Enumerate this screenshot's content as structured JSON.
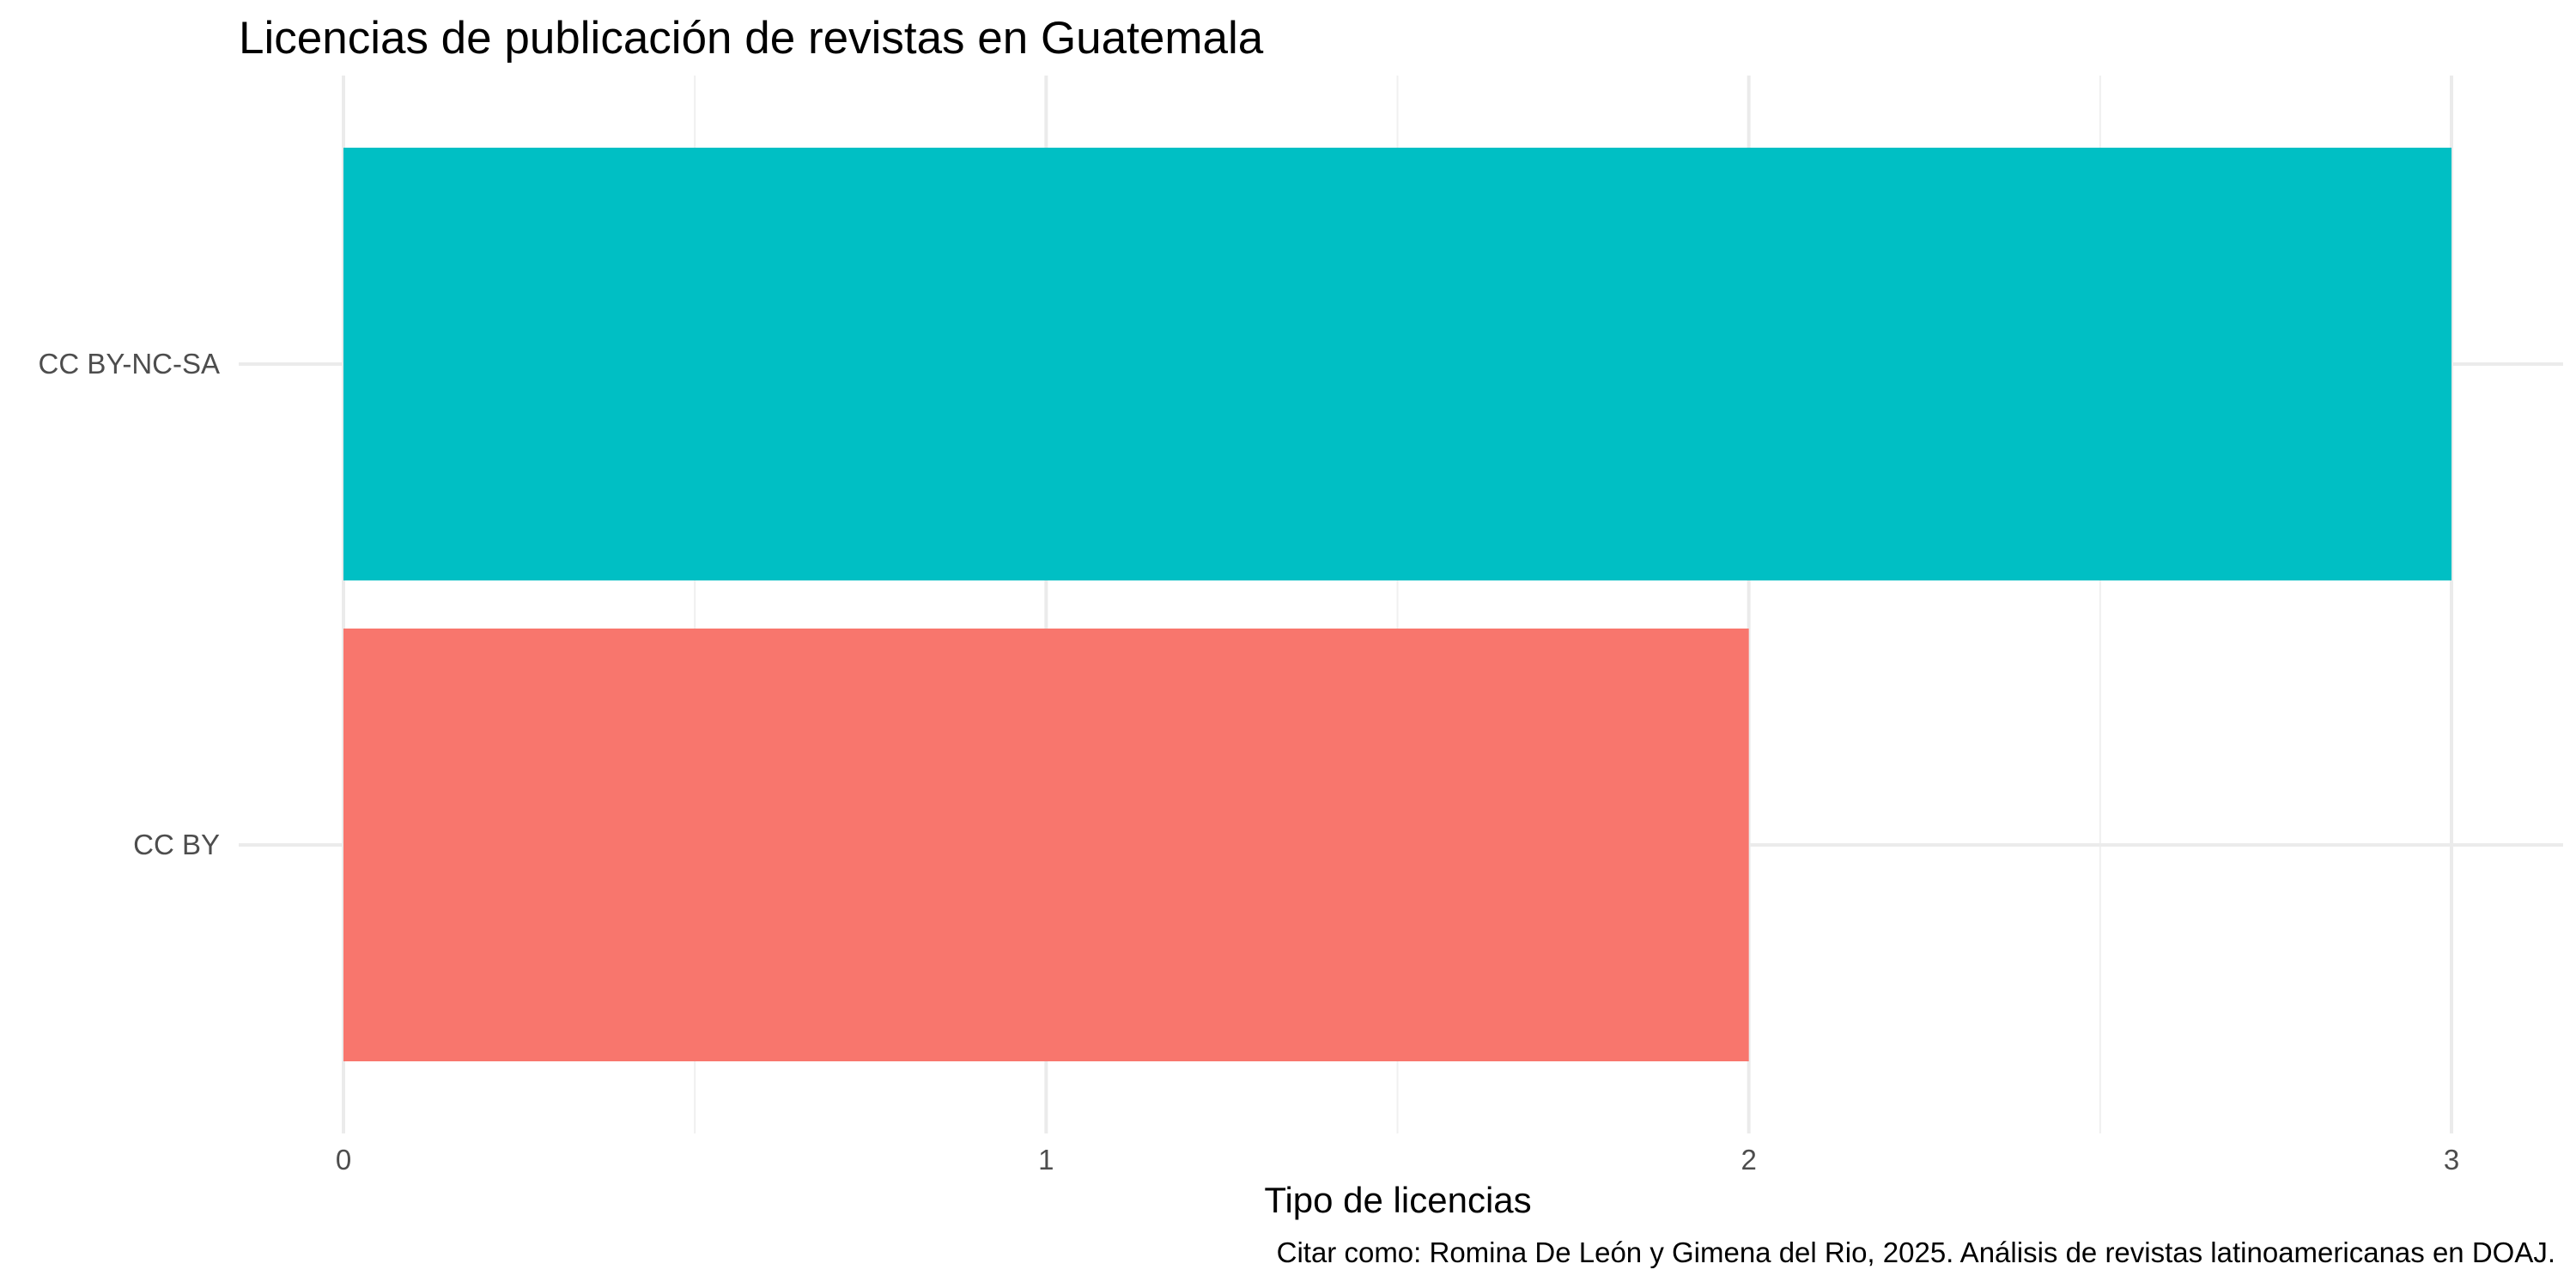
{
  "chart_data": {
    "type": "bar",
    "orientation": "horizontal",
    "title": "Licencias de publicación de revistas en Guatemala",
    "xlabel": "Tipo de licencias",
    "ylabel": "",
    "caption": "Citar como: Romina De León y Gimena del Rio, 2025. Análisis de revistas latinoamericanas en DOAJ.",
    "categories": [
      "CC BY",
      "CC BY-NC-SA"
    ],
    "values": [
      2,
      3
    ],
    "colors": [
      "#F8766D",
      "#00BFC4"
    ],
    "xlim": [
      0,
      3
    ],
    "xticks": [
      0,
      1,
      2,
      3
    ],
    "xtick_labels": [
      "0",
      "1",
      "2",
      "3"
    ],
    "grid": true,
    "legend": "none"
  }
}
